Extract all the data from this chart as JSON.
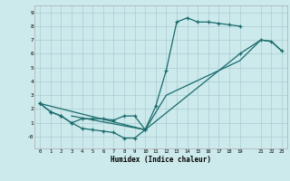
{
  "xlabel": "Humidex (Indice chaleur)",
  "bg_color": "#cce9ec",
  "grid_color": "#aacdd4",
  "line_color": "#1a6b6b",
  "xlim": [
    -0.5,
    23.5
  ],
  "ylim": [
    -0.85,
    9.5
  ],
  "xtick_vals": [
    0,
    1,
    2,
    3,
    4,
    5,
    6,
    7,
    8,
    9,
    10,
    11,
    12,
    13,
    14,
    15,
    16,
    17,
    18,
    19,
    21,
    22,
    23
  ],
  "ytick_vals": [
    0,
    1,
    2,
    3,
    4,
    5,
    6,
    7,
    8,
    9
  ],
  "ytick_labels": [
    "-0",
    "1",
    "2",
    "3",
    "4",
    "5",
    "6",
    "7",
    "8",
    "9"
  ],
  "curve1_x": [
    0,
    1,
    2,
    3,
    4,
    5,
    6,
    7,
    8,
    9,
    10,
    11,
    12,
    13,
    14,
    15,
    16,
    17,
    18,
    19
  ],
  "curve1_y": [
    2.4,
    1.8,
    1.5,
    1.0,
    1.3,
    1.3,
    1.3,
    1.2,
    1.5,
    1.5,
    0.5,
    2.2,
    4.8,
    8.3,
    8.6,
    8.3,
    8.3,
    8.2,
    8.1,
    8.0
  ],
  "curve2_x": [
    0,
    1,
    2,
    3,
    4,
    5,
    6,
    7,
    8,
    9,
    10
  ],
  "curve2_y": [
    2.4,
    1.8,
    1.5,
    1.0,
    0.6,
    0.5,
    0.4,
    0.3,
    -0.1,
    -0.1,
    0.5
  ],
  "curve3_x": [
    0,
    10,
    19,
    21,
    22,
    23
  ],
  "curve3_y": [
    2.4,
    0.5,
    6.0,
    7.0,
    6.9,
    6.2
  ],
  "curve4_x": [
    3,
    10,
    12,
    19,
    21,
    22,
    23
  ],
  "curve4_y": [
    1.5,
    0.5,
    3.0,
    5.5,
    7.0,
    6.9,
    6.2
  ]
}
